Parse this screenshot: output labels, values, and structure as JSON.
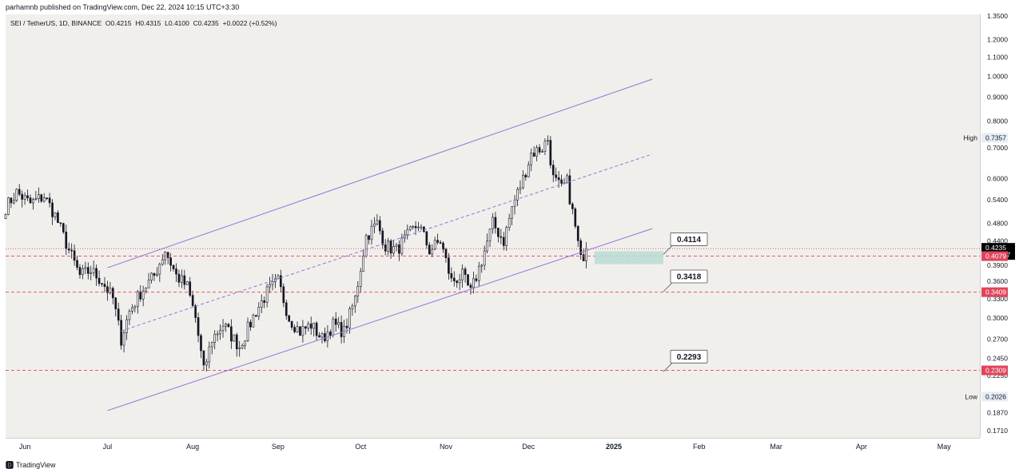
{
  "attribution": "parhamnb published on TradingView.com, Dec 22, 2024 10:15 UTC+3:30",
  "legend": {
    "symbol": "SEI / TetherUS, 1D, BINANCE",
    "open": "O0.4215",
    "high": "H0.4315",
    "low": "L0.4100",
    "close": "C0.4235",
    "change": "+0.0022 (+0.52%)"
  },
  "footer": {
    "logo_text": "TradingView"
  },
  "colors": {
    "background": "#f1efec",
    "up_candle": "#ffffff",
    "down_candle": "#131722",
    "channel": "#9a7ed8",
    "level_line": "#e0445a",
    "zone": "#b9dcd3",
    "price_label": "#000000"
  },
  "chart_data": {
    "type": "candlestick",
    "symbol": "SEI / TetherUS",
    "interval": "1D",
    "exchange": "BINANCE",
    "y_scale": "log",
    "ylim": [
      0.165,
      1.36
    ],
    "xlim": [
      "2024-05-25",
      "2025-05-14"
    ],
    "x_ticks": [
      {
        "date": "2024-06-01",
        "label": "Jun"
      },
      {
        "date": "2024-07-01",
        "label": "Jul"
      },
      {
        "date": "2024-08-01",
        "label": "Aug"
      },
      {
        "date": "2024-09-01",
        "label": "Sep"
      },
      {
        "date": "2024-10-01",
        "label": "Oct"
      },
      {
        "date": "2024-11-01",
        "label": "Nov"
      },
      {
        "date": "2024-12-01",
        "label": "Dec"
      },
      {
        "date": "2025-01-01",
        "label": "2025"
      },
      {
        "date": "2025-02-01",
        "label": "Feb"
      },
      {
        "date": "2025-03-01",
        "label": "Mar"
      },
      {
        "date": "2025-04-01",
        "label": "Apr"
      },
      {
        "date": "2025-05-01",
        "label": "May"
      }
    ],
    "y_ticks": [
      "1.3500",
      "1.2000",
      "1.1000",
      "1.0000",
      "0.9000",
      "0.8000",
      "0.7000",
      "0.6000",
      "0.5400",
      "0.4800",
      "0.4400",
      "0.3900",
      "0.3600",
      "0.3300",
      "0.3000",
      "0.2700",
      "0.2450",
      "0.2250",
      "0.1870",
      "0.1710"
    ],
    "price_path": [
      [
        "2024-05-25",
        0.52
      ],
      [
        "2024-05-29",
        0.56
      ],
      [
        "2024-06-03",
        0.53
      ],
      [
        "2024-06-08",
        0.55
      ],
      [
        "2024-06-12",
        0.5
      ],
      [
        "2024-06-17",
        0.42
      ],
      [
        "2024-06-21",
        0.37
      ],
      [
        "2024-06-25",
        0.38
      ],
      [
        "2024-06-29",
        0.36
      ],
      [
        "2024-07-03",
        0.33
      ],
      [
        "2024-07-06",
        0.27
      ],
      [
        "2024-07-09",
        0.31
      ],
      [
        "2024-07-13",
        0.34
      ],
      [
        "2024-07-18",
        0.37
      ],
      [
        "2024-07-22",
        0.42
      ],
      [
        "2024-07-26",
        0.37
      ],
      [
        "2024-07-30",
        0.35
      ],
      [
        "2024-08-02",
        0.3
      ],
      [
        "2024-08-05",
        0.23
      ],
      [
        "2024-08-08",
        0.27
      ],
      [
        "2024-08-12",
        0.29
      ],
      [
        "2024-08-18",
        0.26
      ],
      [
        "2024-08-24",
        0.31
      ],
      [
        "2024-08-28",
        0.34
      ],
      [
        "2024-09-01",
        0.36
      ],
      [
        "2024-09-05",
        0.3
      ],
      [
        "2024-09-09",
        0.28
      ],
      [
        "2024-09-13",
        0.29
      ],
      [
        "2024-09-17",
        0.27
      ],
      [
        "2024-09-21",
        0.29
      ],
      [
        "2024-09-25",
        0.28
      ],
      [
        "2024-09-29",
        0.33
      ],
      [
        "2024-10-03",
        0.45
      ],
      [
        "2024-10-07",
        0.48
      ],
      [
        "2024-10-10",
        0.43
      ],
      [
        "2024-10-14",
        0.42
      ],
      [
        "2024-10-18",
        0.45
      ],
      [
        "2024-10-22",
        0.48
      ],
      [
        "2024-10-26",
        0.42
      ],
      [
        "2024-10-30",
        0.44
      ],
      [
        "2024-11-03",
        0.36
      ],
      [
        "2024-11-07",
        0.37
      ],
      [
        "2024-11-10",
        0.34
      ],
      [
        "2024-11-14",
        0.4
      ],
      [
        "2024-11-18",
        0.48
      ],
      [
        "2024-11-22",
        0.44
      ],
      [
        "2024-11-25",
        0.52
      ],
      [
        "2024-11-29",
        0.6
      ],
      [
        "2024-12-02",
        0.68
      ],
      [
        "2024-12-06",
        0.7
      ],
      [
        "2024-12-08",
        0.73
      ],
      [
        "2024-12-10",
        0.6
      ],
      [
        "2024-12-13",
        0.57
      ],
      [
        "2024-12-15",
        0.59
      ],
      [
        "2024-12-18",
        0.47
      ],
      [
        "2024-12-20",
        0.4
      ],
      [
        "2024-12-22",
        0.4235
      ]
    ],
    "channel": {
      "upper": [
        [
          "2024-07-01",
          0.385
        ],
        [
          "2025-01-15",
          0.985
        ]
      ],
      "middle": [
        [
          "2024-07-06",
          0.281
        ],
        [
          "2025-01-15",
          0.678
        ]
      ],
      "lower": [
        [
          "2024-07-01",
          0.189
        ],
        [
          "2025-01-15",
          0.468
        ]
      ]
    },
    "horizontal_levels": [
      {
        "value": 0.4235,
        "style": "dotted"
      },
      {
        "value": 0.4079,
        "style": "dashed"
      },
      {
        "value": 0.3409,
        "style": "dashed"
      },
      {
        "value": 0.2309,
        "style": "dashed"
      }
    ],
    "zone": {
      "from": "2024-12-25",
      "to": "2025-01-19",
      "bottom": 0.392,
      "top": 0.418
    },
    "callouts": [
      {
        "label": "0.4114",
        "value": 0.4114,
        "anchor_date": "2025-01-19"
      },
      {
        "label": "0.3418",
        "value": 0.3418,
        "anchor_date": "2025-01-19"
      },
      {
        "label": "0.2293",
        "value": 0.2293,
        "anchor_date": "2025-01-19"
      }
    ],
    "axis_markers": [
      {
        "text": "High",
        "value_text": "0.7357",
        "value": 0.7357,
        "kind": "high"
      },
      {
        "text": "Low",
        "value_text": "0.2026",
        "value": 0.2026,
        "kind": "low"
      },
      {
        "value_text": "0.4235",
        "sub_text": "17:14:17",
        "value": 0.4235,
        "kind": "price"
      },
      {
        "value_text": "0.4079",
        "value": 0.4079,
        "kind": "level"
      },
      {
        "value_text": "0.3409",
        "value": 0.3409,
        "kind": "level"
      },
      {
        "value_text": "0.2309",
        "value": 0.2309,
        "kind": "level"
      }
    ]
  }
}
